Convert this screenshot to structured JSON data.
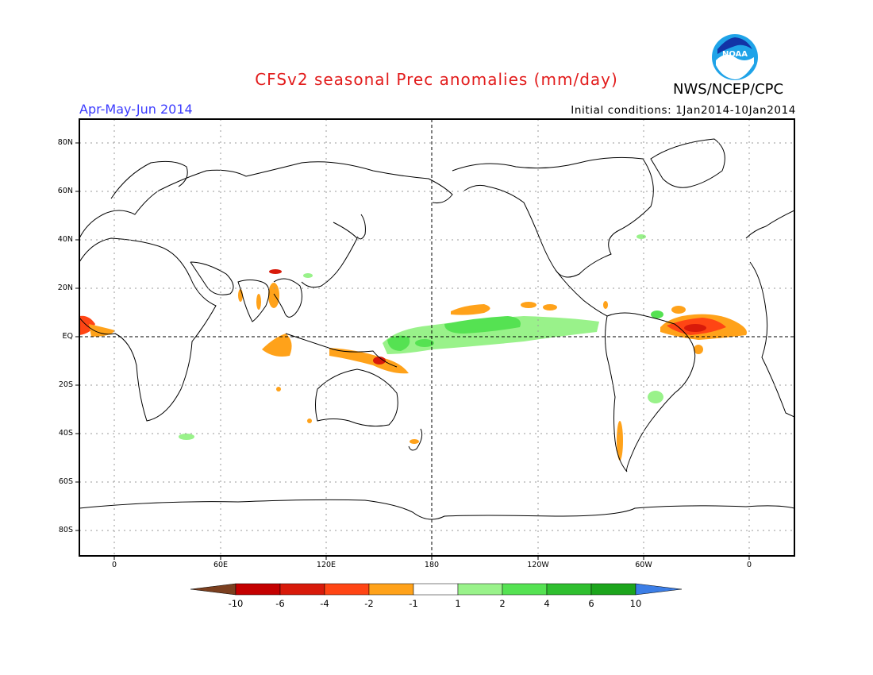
{
  "title": "CFSv2 seasonal Prec anomalies (mm/day)",
  "season": "Apr-May-Jun 2014",
  "agency": "NWS/NCEP/CPC",
  "initial_conditions": "Initial conditions: 1Jan2014-10Jan2014",
  "logo_text": "NOAA",
  "lat_labels": [
    "80N",
    "60N",
    "40N",
    "20N",
    "EQ",
    "20S",
    "40S",
    "60S",
    "80S"
  ],
  "lon_labels": [
    "0",
    "60E",
    "120E",
    "180",
    "120W",
    "60W",
    "0"
  ],
  "colorbar": {
    "labels": [
      "-10",
      "-6",
      "-4",
      "-2",
      "-1",
      "1",
      "2",
      "4",
      "6",
      "10"
    ],
    "colors": [
      "#7b3f1f",
      "#c40000",
      "#d81a0a",
      "#ff4514",
      "#ffa21a",
      "#ffffff",
      "#99f28a",
      "#55e252",
      "#2fbf2f",
      "#1ca51c",
      "#3c7ee6"
    ]
  },
  "colors": {
    "title": "#e21b1b",
    "season": "#3b3bff",
    "neg_1_2": "#ffa21a",
    "neg_2_4": "#ff4514",
    "neg_4_6": "#d81a0a",
    "pos_1_2": "#99f28a",
    "pos_2_4": "#55e252"
  }
}
